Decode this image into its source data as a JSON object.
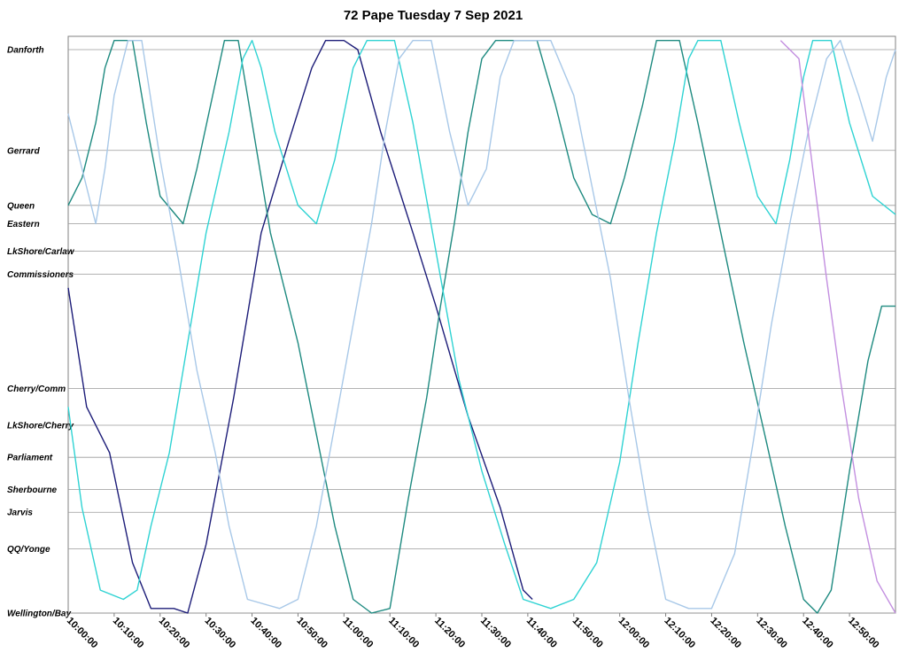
{
  "chart_data": {
    "type": "line",
    "title": "72 Pape Tuesday 7 Sep 2021",
    "xlabel": "",
    "ylabel": "",
    "x_unit": "time",
    "xlim": [
      "10:00:00",
      "13:00:00"
    ],
    "x_ticks": [
      "10:00:00",
      "10:10:00",
      "10:20:00",
      "10:30:00",
      "10:40:00",
      "10:50:00",
      "11:00:00",
      "11:10:00",
      "11:20:00",
      "11:30:00",
      "11:40:00",
      "11:50:00",
      "12:00:00",
      "12:10:00",
      "12:20:00",
      "12:30:00",
      "12:40:00",
      "12:50:00"
    ],
    "stops": [
      {
        "name": "Danforth",
        "km": 0.0
      },
      {
        "name": "Gerrard",
        "km": 1.1
      },
      {
        "name": "Queen",
        "km": 1.7
      },
      {
        "name": "Eastern",
        "km": 1.9
      },
      {
        "name": "LkShore/Carlaw",
        "km": 2.2
      },
      {
        "name": "Commissioners",
        "km": 2.45
      },
      {
        "name": "Cherry/Comm",
        "km": 3.7
      },
      {
        "name": "LkShore/Cherry",
        "km": 4.1
      },
      {
        "name": "Parliament",
        "km": 4.45
      },
      {
        "name": "Sherbourne",
        "km": 4.8
      },
      {
        "name": "Jarvis",
        "km": 5.05
      },
      {
        "name": "QQ/Yonge",
        "km": 5.45
      },
      {
        "name": "Wellington/Bay",
        "km": 6.15
      }
    ],
    "grid": true,
    "legend": "none",
    "series": [
      {
        "color": "#1c1c78",
        "points": [
          [
            "10:00:00",
            2.6
          ],
          [
            "10:04:00",
            3.9
          ],
          [
            "10:09:00",
            4.4
          ],
          [
            "10:14:00",
            5.6
          ],
          [
            "10:18:00",
            6.1
          ],
          [
            "10:23:00",
            6.1
          ],
          [
            "10:26:00",
            6.2
          ],
          [
            "10:30:00",
            5.4
          ],
          [
            "10:36:00",
            3.8
          ],
          [
            "10:42:00",
            2.0
          ],
          [
            "10:48:00",
            1.0
          ],
          [
            "10:53:00",
            0.2
          ],
          [
            "10:56:00",
            -0.1
          ],
          [
            "11:00:00",
            -0.1
          ],
          [
            "11:03:00",
            0.0
          ],
          [
            "11:08:00",
            0.9
          ],
          [
            "11:15:00",
            2.0
          ],
          [
            "11:20:00",
            2.8
          ],
          [
            "11:27:00",
            4.0
          ],
          [
            "11:34:00",
            5.0
          ],
          [
            "11:39:00",
            5.9
          ],
          [
            "11:41:00",
            6.0
          ]
        ]
      },
      {
        "color": "#1e8a80",
        "points": [
          [
            "10:00:00",
            1.7
          ],
          [
            "10:03:00",
            1.4
          ],
          [
            "10:06:00",
            0.8
          ],
          [
            "10:08:00",
            0.2
          ],
          [
            "10:10:00",
            -0.1
          ],
          [
            "10:14:00",
            -0.1
          ],
          [
            "10:17:00",
            0.8
          ],
          [
            "10:20:00",
            1.6
          ],
          [
            "10:25:00",
            1.9
          ],
          [
            "10:28:00",
            1.3
          ],
          [
            "10:31:00",
            0.6
          ],
          [
            "10:34:00",
            -0.1
          ],
          [
            "10:37:00",
            -0.1
          ],
          [
            "10:40:00",
            0.8
          ],
          [
            "10:44:00",
            2.0
          ],
          [
            "10:50:00",
            3.2
          ],
          [
            "10:54:00",
            4.2
          ],
          [
            "10:58:00",
            5.2
          ],
          [
            "11:02:00",
            6.0
          ],
          [
            "11:06:00",
            6.2
          ],
          [
            "11:10:00",
            6.1
          ],
          [
            "11:14:00",
            4.9
          ],
          [
            "11:18:00",
            3.8
          ],
          [
            "11:21:00",
            2.8
          ],
          [
            "11:24:00",
            1.9
          ],
          [
            "11:27:00",
            0.9
          ],
          [
            "11:30:00",
            0.1
          ],
          [
            "11:33:00",
            -0.1
          ],
          [
            "11:42:00",
            -0.1
          ],
          [
            "11:46:00",
            0.6
          ],
          [
            "11:50:00",
            1.4
          ],
          [
            "11:54:00",
            1.8
          ],
          [
            "11:58:00",
            1.9
          ],
          [
            "12:01:00",
            1.4
          ],
          [
            "12:05:00",
            0.6
          ],
          [
            "12:08:00",
            -0.1
          ],
          [
            "12:13:00",
            -0.1
          ],
          [
            "12:17:00",
            0.8
          ],
          [
            "12:22:00",
            2.0
          ],
          [
            "12:27:00",
            3.2
          ],
          [
            "12:32:00",
            4.3
          ],
          [
            "12:36:00",
            5.2
          ],
          [
            "12:40:00",
            6.0
          ],
          [
            "12:43:00",
            6.2
          ],
          [
            "12:46:00",
            5.9
          ],
          [
            "12:50:00",
            4.6
          ],
          [
            "12:54:00",
            3.4
          ],
          [
            "12:57:00",
            2.8
          ],
          [
            "13:00:00",
            2.8
          ]
        ]
      },
      {
        "color": "#2fd3d3",
        "points": [
          [
            "10:00:00",
            3.9
          ],
          [
            "10:03:00",
            5.0
          ],
          [
            "10:07:00",
            5.9
          ],
          [
            "10:12:00",
            6.0
          ],
          [
            "10:15:00",
            5.9
          ],
          [
            "10:18:00",
            5.2
          ],
          [
            "10:22:00",
            4.4
          ],
          [
            "10:26:00",
            3.2
          ],
          [
            "10:30:00",
            2.0
          ],
          [
            "10:35:00",
            0.9
          ],
          [
            "10:38:00",
            0.1
          ],
          [
            "10:40:00",
            -0.1
          ],
          [
            "10:42:00",
            0.2
          ],
          [
            "10:45:00",
            0.9
          ],
          [
            "10:50:00",
            1.7
          ],
          [
            "10:54:00",
            1.9
          ],
          [
            "10:58:00",
            1.2
          ],
          [
            "11:02:00",
            0.2
          ],
          [
            "11:05:00",
            -0.1
          ],
          [
            "11:11:00",
            -0.1
          ],
          [
            "11:15:00",
            0.8
          ],
          [
            "11:20:00",
            2.2
          ],
          [
            "11:25:00",
            3.6
          ],
          [
            "11:30:00",
            4.6
          ],
          [
            "11:35:00",
            5.4
          ],
          [
            "11:39:00",
            6.0
          ],
          [
            "11:45:00",
            6.1
          ],
          [
            "11:50:00",
            6.0
          ],
          [
            "11:55:00",
            5.6
          ],
          [
            "12:00:00",
            4.5
          ],
          [
            "12:04:00",
            3.2
          ],
          [
            "12:08:00",
            2.0
          ],
          [
            "12:12:00",
            1.0
          ],
          [
            "12:15:00",
            0.1
          ],
          [
            "12:17:00",
            -0.1
          ],
          [
            "12:22:00",
            -0.1
          ],
          [
            "12:26:00",
            0.8
          ],
          [
            "12:30:00",
            1.6
          ],
          [
            "12:34:00",
            1.9
          ],
          [
            "12:37:00",
            1.2
          ],
          [
            "12:40:00",
            0.3
          ],
          [
            "12:42:00",
            -0.1
          ],
          [
            "12:46:00",
            -0.1
          ],
          [
            "12:50:00",
            0.8
          ],
          [
            "12:55:00",
            1.6
          ],
          [
            "13:00:00",
            1.8
          ]
        ]
      },
      {
        "color": "#a8c8e8",
        "points": [
          [
            "10:00:00",
            0.7
          ],
          [
            "10:03:00",
            1.3
          ],
          [
            "10:06:00",
            1.9
          ],
          [
            "10:08:00",
            1.3
          ],
          [
            "10:10:00",
            0.5
          ],
          [
            "10:13:00",
            -0.1
          ],
          [
            "10:16:00",
            -0.1
          ],
          [
            "10:20:00",
            1.2
          ],
          [
            "10:24:00",
            2.3
          ],
          [
            "10:28:00",
            3.5
          ],
          [
            "10:32:00",
            4.4
          ],
          [
            "10:35:00",
            5.2
          ],
          [
            "10:39:00",
            6.0
          ],
          [
            "10:46:00",
            6.1
          ],
          [
            "10:50:00",
            6.0
          ],
          [
            "10:54:00",
            5.2
          ],
          [
            "10:58:00",
            4.1
          ],
          [
            "11:02:00",
            3.0
          ],
          [
            "11:06:00",
            1.9
          ],
          [
            "11:09:00",
            0.9
          ],
          [
            "11:12:00",
            0.1
          ],
          [
            "11:15:00",
            -0.1
          ],
          [
            "11:19:00",
            -0.1
          ],
          [
            "11:23:00",
            0.9
          ],
          [
            "11:27:00",
            1.7
          ],
          [
            "11:31:00",
            1.3
          ],
          [
            "11:34:00",
            0.3
          ],
          [
            "11:37:00",
            -0.1
          ],
          [
            "11:45:00",
            -0.1
          ],
          [
            "11:50:00",
            0.5
          ],
          [
            "11:54:00",
            1.5
          ],
          [
            "11:58:00",
            2.5
          ],
          [
            "12:02:00",
            3.8
          ],
          [
            "12:06:00",
            5.0
          ],
          [
            "12:10:00",
            6.0
          ],
          [
            "12:15:00",
            6.1
          ],
          [
            "12:20:00",
            6.1
          ],
          [
            "12:25:00",
            5.5
          ],
          [
            "12:29:00",
            4.3
          ],
          [
            "12:33:00",
            3.0
          ],
          [
            "12:37:00",
            1.9
          ],
          [
            "12:41:00",
            0.9
          ],
          [
            "12:45:00",
            0.1
          ],
          [
            "12:48:00",
            -0.1
          ],
          [
            "12:52:00",
            0.5
          ],
          [
            "12:55:00",
            1.0
          ],
          [
            "12:58:00",
            0.3
          ],
          [
            "13:00:00",
            0.0
          ]
        ]
      },
      {
        "color": "#c38fe0",
        "points": [
          [
            "12:35:00",
            -0.1
          ],
          [
            "12:39:00",
            0.1
          ],
          [
            "12:42:00",
            1.3
          ],
          [
            "12:45:00",
            2.5
          ],
          [
            "12:48:00",
            3.6
          ],
          [
            "12:52:00",
            4.9
          ],
          [
            "12:56:00",
            5.8
          ],
          [
            "13:00:00",
            6.2
          ]
        ]
      }
    ]
  }
}
